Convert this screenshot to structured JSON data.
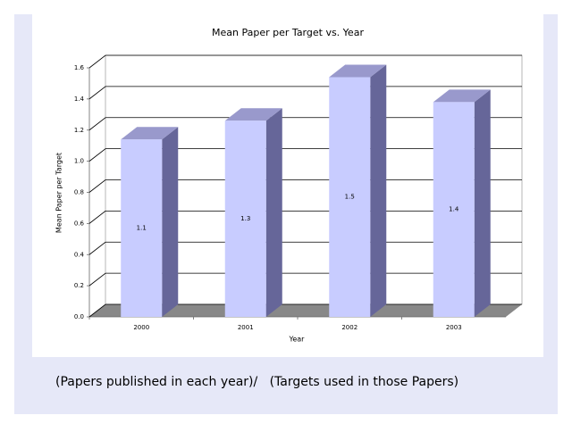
{
  "chart_data": {
    "type": "bar3d",
    "title": "Mean Paper per Target vs. Year",
    "x_label": "Year",
    "y_label": "Mean Paper per Target",
    "categories": [
      "2000",
      "2001",
      "2002",
      "2003"
    ],
    "values": [
      1.14,
      1.26,
      1.54,
      1.38
    ],
    "value_labels": [
      "1.1",
      "1.3",
      "1.5",
      "1.4"
    ],
    "color": "#c8ccff",
    "ylim": [
      0,
      1.6
    ],
    "yticks": [
      {
        "value": 0,
        "label": "0.0"
      },
      0.2,
      0.4,
      0.6,
      0.8,
      {
        "value": 1,
        "label": "1.0"
      },
      1.2,
      1.4,
      1.6
    ],
    "grid": true
  },
  "caption": "(Papers published in each year)/   (Targets used in those Papers)"
}
